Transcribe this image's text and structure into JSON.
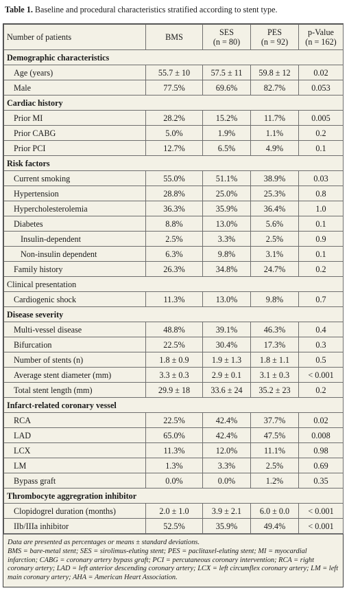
{
  "caption": {
    "label": "Table 1.",
    "text": " Baseline and procedural characteristics stratified according to stent type."
  },
  "header": {
    "col0": "Number of patients",
    "col1": "BMS",
    "col2_line1": "SES",
    "col2_line2": "(n = 80)",
    "col3_line1": "PES",
    "col3_line2": "(n = 92)",
    "col4_line1": "p-Value",
    "col4_line2": "(n = 162)"
  },
  "rows": [
    {
      "type": "section",
      "label": "Demographic characteristics"
    },
    {
      "type": "data",
      "indent": 1,
      "label": "Age (years)",
      "bms": "55.7 ± 10",
      "ses": "57.5 ± 11",
      "pes": "59.8 ± 12",
      "p": "0.02"
    },
    {
      "type": "data",
      "indent": 1,
      "label": "Male",
      "bms": "77.5%",
      "ses": "69.6%",
      "pes": "82.7%",
      "p": "0.053"
    },
    {
      "type": "section",
      "label": "Cardiac history"
    },
    {
      "type": "data",
      "indent": 1,
      "label": "Prior MI",
      "bms": "28.2%",
      "ses": "15.2%",
      "pes": "11.7%",
      "p": "0.005"
    },
    {
      "type": "data",
      "indent": 1,
      "label": "Prior CABG",
      "bms": "5.0%",
      "ses": "1.9%",
      "pes": "1.1%",
      "p": "0.2"
    },
    {
      "type": "data",
      "indent": 1,
      "label": "Prior PCI",
      "bms": "12.7%",
      "ses": "6.5%",
      "pes": "4.9%",
      "p": "0.1"
    },
    {
      "type": "section",
      "label": "Risk factors"
    },
    {
      "type": "data",
      "indent": 1,
      "label": "Current smoking",
      "bms": "55.0%",
      "ses": "51.1%",
      "pes": "38.9%",
      "p": "0.03"
    },
    {
      "type": "data",
      "indent": 1,
      "label": "Hypertension",
      "bms": "28.8%",
      "ses": "25.0%",
      "pes": "25.3%",
      "p": "0.8"
    },
    {
      "type": "data",
      "indent": 1,
      "label": "Hypercholesterolemia",
      "bms": "36.3%",
      "ses": "35.9%",
      "pes": "36.4%",
      "p": "1.0"
    },
    {
      "type": "data",
      "indent": 1,
      "label": "Diabetes",
      "bms": "8.8%",
      "ses": "13.0%",
      "pes": "5.6%",
      "p": "0.1"
    },
    {
      "type": "data",
      "indent": 2,
      "label": "Insulin-dependent",
      "bms": "2.5%",
      "ses": "3.3%",
      "pes": "2.5%",
      "p": "0.9"
    },
    {
      "type": "data",
      "indent": 2,
      "label": "Non-insulin dependent",
      "bms": "6.3%",
      "ses": "9.8%",
      "pes": "3.1%",
      "p": "0.1"
    },
    {
      "type": "data",
      "indent": 1,
      "label": "Family history",
      "bms": "26.3%",
      "ses": "34.8%",
      "pes": "24.7%",
      "p": "0.2"
    },
    {
      "type": "plain",
      "label": "Clinical presentation"
    },
    {
      "type": "data",
      "indent": 1,
      "label": "Cardiogenic shock",
      "bms": "11.3%",
      "ses": "13.0%",
      "pes": "9.8%",
      "p": "0.7"
    },
    {
      "type": "section",
      "label": "Disease severity"
    },
    {
      "type": "data",
      "indent": 1,
      "label": "Multi-vessel disease",
      "bms": "48.8%",
      "ses": "39.1%",
      "pes": "46.3%",
      "p": "0.4"
    },
    {
      "type": "data",
      "indent": 1,
      "label": "Bifurcation",
      "bms": "22.5%",
      "ses": "30.4%",
      "pes": "17.3%",
      "p": "0.3"
    },
    {
      "type": "data",
      "indent": 1,
      "label": "Number of stents (n)",
      "bms": "1.8 ± 0.9",
      "ses": "1.9 ± 1.3",
      "pes": "1.8 ± 1.1",
      "p": "0.5"
    },
    {
      "type": "data",
      "indent": 1,
      "label": "Average stent diameter (mm)",
      "bms": "3.3 ± 0.3",
      "ses": "2.9 ± 0.1",
      "pes": "3.1 ± 0.3",
      "p": "< 0.001"
    },
    {
      "type": "data",
      "indent": 1,
      "label": "Total stent length (mm)",
      "bms": "29.9 ± 18",
      "ses": "33.6 ± 24",
      "pes": "35.2 ± 23",
      "p": "0.2"
    },
    {
      "type": "section",
      "label": "Infarct-related coronary vessel"
    },
    {
      "type": "data",
      "indent": 1,
      "label": "RCA",
      "bms": "22.5%",
      "ses": "42.4%",
      "pes": "37.7%",
      "p": "0.02"
    },
    {
      "type": "data",
      "indent": 1,
      "label": "LAD",
      "bms": "65.0%",
      "ses": "42.4%",
      "pes": "47.5%",
      "p": "0.008"
    },
    {
      "type": "data",
      "indent": 1,
      "label": "LCX",
      "bms": "11.3%",
      "ses": "12.0%",
      "pes": "11.1%",
      "p": "0.98"
    },
    {
      "type": "data",
      "indent": 1,
      "label": "LM",
      "bms": "1.3%",
      "ses": "3.3%",
      "pes": "2.5%",
      "p": "0.69"
    },
    {
      "type": "data",
      "indent": 1,
      "label": "Bypass graft",
      "bms": "0.0%",
      "ses": "0.0%",
      "pes": "1.2%",
      "p": "0.35"
    },
    {
      "type": "section",
      "label": "Thrombocyte aggregration inhibitor"
    },
    {
      "type": "data",
      "indent": 1,
      "label": "Clopidogrel duration (months)",
      "bms": "2.0 ± 1.0",
      "ses": "3.9 ± 2.1",
      "pes": "6.0 ± 0.0",
      "p": "< 0.001"
    },
    {
      "type": "data",
      "indent": 1,
      "label": "IIb/IIIa inhibitor",
      "bms": "52.5%",
      "ses": "35.9%",
      "pes": "49.4%",
      "p": "< 0.001"
    }
  ],
  "notes": {
    "line1": "Data are presented as percentages or means ± standard deviations.",
    "line2": "BMS = bare-metal stent; SES = sirolimus-eluting stent; PES = paclitaxel-eluting stent; MI = myocardial infarction; CABG = coronary artery bypass graft; PCI = percutaneous coronary intervention; RCA = right coronary artery; LAD = left anterior descending coronary artery; LCX = left circumflex coronary artery; LM = left main coronary artery; AHA = American Heart Association."
  }
}
